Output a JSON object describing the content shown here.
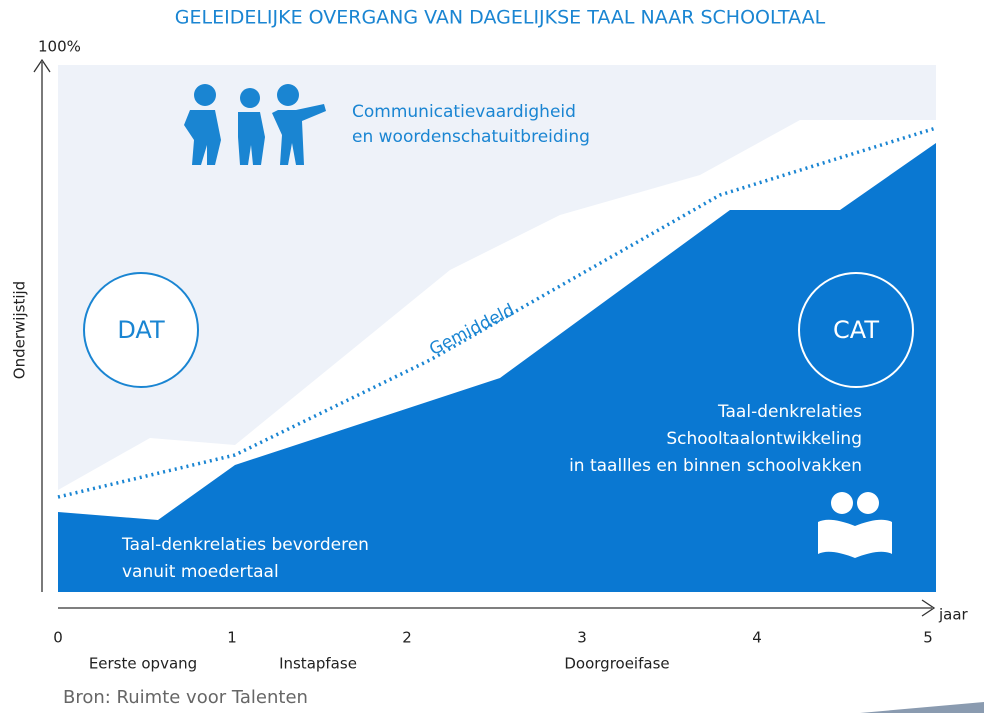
{
  "header": {
    "title": "GELEIDELIJKE OVERGANG VAN DAGELIJKSE TAAL NAAR SCHOOLTAAL"
  },
  "axis": {
    "y_label": "Onderwijstijd",
    "y_max": "100%",
    "x_label": "jaar",
    "ticks": [
      "0",
      "1",
      "2",
      "3",
      "4",
      "5"
    ],
    "phases": [
      "Eerste opvang",
      "Instapfase",
      "Doorgroeifase"
    ]
  },
  "regions": {
    "dat": "DAT",
    "cat": "CAT"
  },
  "top_text": [
    "Communicatievaardigheid",
    "en woordenschatuitbreiding"
  ],
  "average": "Gemiddeld",
  "cat_text": [
    "Taal-denkrelaties",
    "Schooltaalontwikkeling",
    "in taallles en binnen schoolvakken"
  ],
  "dat_text": [
    "Taal-denkrelaties bevorderen",
    "vanuit moedertaal"
  ],
  "source": "Bron: Ruimte voor Talenten"
}
